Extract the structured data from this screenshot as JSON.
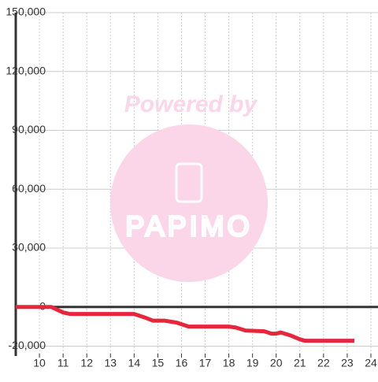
{
  "chart_data": {
    "type": "line",
    "watermark": {
      "line1": "Powered by",
      "line2": "PAPIMO"
    },
    "x": [
      9,
      10.5,
      11,
      11.3,
      14,
      14.5,
      14.8,
      15.3,
      15.8,
      16.3,
      18,
      18.3,
      18.7,
      19.5,
      19.8,
      20,
      20.2,
      20.6,
      21,
      21.2,
      23.3
    ],
    "series": [
      {
        "color": "#e8253a",
        "values": [
          0,
          0,
          -2800,
          -3600,
          -3600,
          -5600,
          -7000,
          -7000,
          -8000,
          -10000,
          -10000,
          -10500,
          -12000,
          -12400,
          -13600,
          -13600,
          -13000,
          -14500,
          -16500,
          -17200,
          -17200
        ]
      }
    ],
    "xlim": [
      9,
      24.3
    ],
    "xticks": [
      10,
      11,
      12,
      13,
      14,
      15,
      16,
      17,
      18,
      19,
      20,
      21,
      22,
      23,
      24
    ],
    "ylim": [
      -25000,
      150000
    ],
    "yticks": [
      {
        "value": -20000,
        "label": "-20,000"
      },
      0,
      {
        "value": 30000,
        "label": "30,000"
      },
      {
        "value": 60000,
        "label": "60,000"
      },
      {
        "value": 90000,
        "label": "90,000"
      },
      {
        "value": 120000,
        "label": "120,000"
      },
      {
        "value": 150000,
        "label": "150,000"
      }
    ],
    "grid": true
  }
}
